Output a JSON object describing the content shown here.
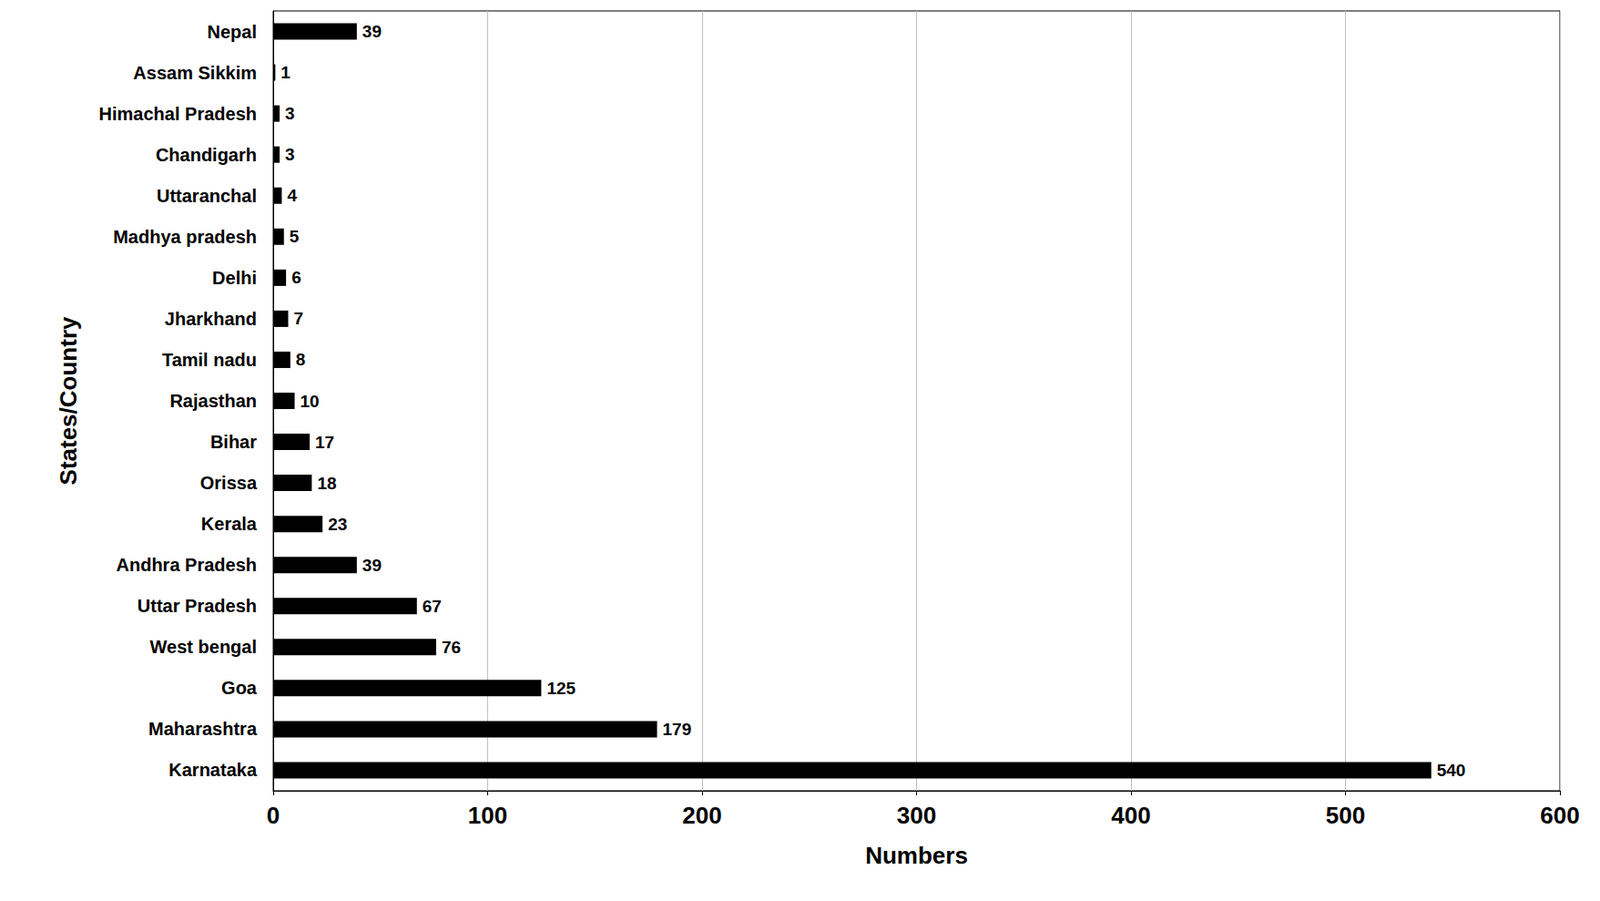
{
  "chart_data": {
    "type": "bar",
    "orientation": "horizontal",
    "xlabel": "Numbers",
    "ylabel": "States/Country",
    "categories": [
      "Nepal",
      "Assam Sikkim",
      "Himachal Pradesh",
      "Chandigarh",
      "Uttaranchal",
      "Madhya pradesh",
      "Delhi",
      "Jharkhand",
      "Tamil nadu",
      "Rajasthan",
      "Bihar",
      "Orissa",
      "Kerala",
      "Andhra Pradesh",
      "Uttar Pradesh",
      "West bengal",
      "Goa",
      "Maharashtra",
      "Karnataka"
    ],
    "values": [
      39,
      1,
      3,
      3,
      4,
      5,
      6,
      7,
      8,
      10,
      17,
      18,
      23,
      39,
      67,
      76,
      125,
      179,
      540
    ],
    "color": "#000000",
    "xlim": [
      0,
      600
    ],
    "xticks": [
      0,
      100,
      200,
      300,
      400,
      500,
      600
    ],
    "grid": true,
    "data_labels": true
  }
}
